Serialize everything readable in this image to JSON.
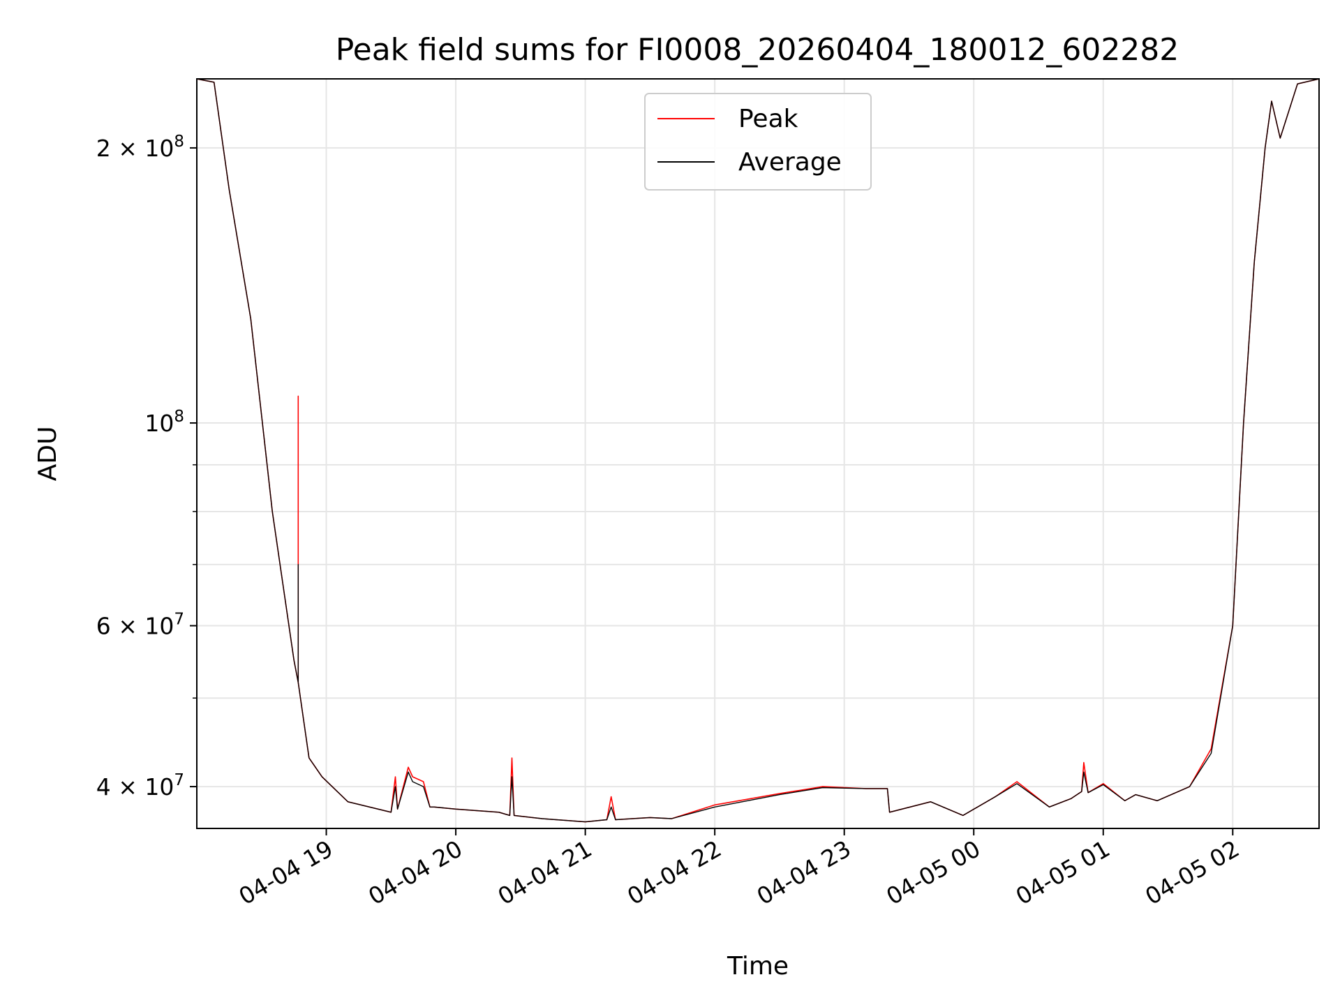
{
  "chart_data": {
    "type": "line",
    "title": "Peak field sums for FI0008_20260404_180012_602282",
    "xlabel": "Time",
    "ylabel": "ADU",
    "yscale": "log",
    "xlim": [
      "2026-04-04 18:00",
      "2026-04-05 02:40"
    ],
    "ylim": [
      36000000.0,
      238000000.0
    ],
    "grid": true,
    "legend": {
      "placement": "top-center"
    },
    "x_ticks": [
      {
        "t": "2026-04-04 19:00",
        "label": "04-04 19"
      },
      {
        "t": "2026-04-04 20:00",
        "label": "04-04 20"
      },
      {
        "t": "2026-04-04 21:00",
        "label": "04-04 21"
      },
      {
        "t": "2026-04-04 22:00",
        "label": "04-04 22"
      },
      {
        "t": "2026-04-04 23:00",
        "label": "04-04 23"
      },
      {
        "t": "2026-04-05 00:00",
        "label": "04-05 00"
      },
      {
        "t": "2026-04-05 01:00",
        "label": "04-05 01"
      },
      {
        "t": "2026-04-05 02:00",
        "label": "04-05 02"
      }
    ],
    "y_ticks": [
      {
        "v": 40000000,
        "label": "4 × 10",
        "exp": "7"
      },
      {
        "v": 60000000,
        "label": "6 × 10",
        "exp": "7"
      },
      {
        "v": 100000000,
        "label": "10",
        "exp": "8"
      },
      {
        "v": 200000000,
        "label": "2 × 10",
        "exp": "8"
      }
    ],
    "y_minor_ticks": [
      50000000,
      70000000,
      80000000,
      90000000
    ],
    "series": [
      {
        "name": "Peak",
        "color": "#ff0000",
        "x": [
          "2026-04-04 18:00",
          "2026-04-04 18:08",
          "2026-04-04 18:15",
          "2026-04-04 18:25",
          "2026-04-04 18:35",
          "2026-04-04 18:45",
          "2026-04-04 18:47",
          "2026-04-04 18:47",
          "2026-04-04 18:47",
          "2026-04-04 18:52",
          "2026-04-04 18:58",
          "2026-04-04 19:10",
          "2026-04-04 19:30",
          "2026-04-04 19:32",
          "2026-04-04 19:33",
          "2026-04-04 19:38",
          "2026-04-04 19:40",
          "2026-04-04 19:45",
          "2026-04-04 19:48",
          "2026-04-04 19:50",
          "2026-04-04 20:00",
          "2026-04-04 20:20",
          "2026-04-04 20:25",
          "2026-04-04 20:26",
          "2026-04-04 20:27",
          "2026-04-04 20:40",
          "2026-04-04 21:00",
          "2026-04-04 21:10",
          "2026-04-04 21:12",
          "2026-04-04 21:14",
          "2026-04-04 21:30",
          "2026-04-04 21:40",
          "2026-04-04 22:00",
          "2026-04-04 22:30",
          "2026-04-04 22:50",
          "2026-04-04 23:10",
          "2026-04-04 23:20",
          "2026-04-04 23:21",
          "2026-04-04 23:40",
          "2026-04-04 23:55",
          "2026-04-05 00:10",
          "2026-04-05 00:20",
          "2026-04-05 00:35",
          "2026-04-05 00:45",
          "2026-04-05 00:50",
          "2026-04-05 00:51",
          "2026-04-05 00:53",
          "2026-04-05 01:00",
          "2026-04-05 01:10",
          "2026-04-05 01:15",
          "2026-04-05 01:25",
          "2026-04-05 01:40",
          "2026-04-05 01:50",
          "2026-04-05 02:00",
          "2026-04-05 02:05",
          "2026-04-05 02:10",
          "2026-04-05 02:15",
          "2026-04-05 02:18",
          "2026-04-05 02:22",
          "2026-04-05 02:30",
          "2026-04-05 02:40"
        ],
        "y": [
          238000000,
          236000000,
          180000000,
          130000000,
          80000000,
          55000000,
          52000000,
          107000000,
          52000000,
          43000000,
          41000000,
          38500000,
          37500000,
          41000000,
          37800000,
          42000000,
          41000000,
          40500000,
          38000000,
          38000000,
          37800000,
          37500000,
          37200000,
          43000000,
          37200000,
          36900000,
          36600000,
          36800000,
          39000000,
          36800000,
          37000000,
          36900000,
          38200000,
          39300000,
          40000000,
          39800000,
          39800000,
          37500000,
          38500000,
          37200000,
          39000000,
          40500000,
          38000000,
          38800000,
          39500000,
          42500000,
          39400000,
          40300000,
          38600000,
          39200000,
          38600000,
          40000000,
          44000000,
          60000000,
          100000000,
          150000000,
          200000000,
          225000000,
          205000000,
          235000000,
          238000000
        ]
      },
      {
        "name": "Average",
        "color": "#000000",
        "x": [
          "2026-04-04 18:00",
          "2026-04-04 18:08",
          "2026-04-04 18:15",
          "2026-04-04 18:25",
          "2026-04-04 18:35",
          "2026-04-04 18:45",
          "2026-04-04 18:47",
          "2026-04-04 18:47",
          "2026-04-04 18:47",
          "2026-04-04 18:52",
          "2026-04-04 18:58",
          "2026-04-04 19:10",
          "2026-04-04 19:30",
          "2026-04-04 19:32",
          "2026-04-04 19:33",
          "2026-04-04 19:38",
          "2026-04-04 19:40",
          "2026-04-04 19:45",
          "2026-04-04 19:48",
          "2026-04-04 19:50",
          "2026-04-04 20:00",
          "2026-04-04 20:20",
          "2026-04-04 20:25",
          "2026-04-04 20:26",
          "2026-04-04 20:27",
          "2026-04-04 20:40",
          "2026-04-04 21:00",
          "2026-04-04 21:10",
          "2026-04-04 21:12",
          "2026-04-04 21:14",
          "2026-04-04 21:30",
          "2026-04-04 21:40",
          "2026-04-04 22:00",
          "2026-04-04 22:30",
          "2026-04-04 22:50",
          "2026-04-04 23:10",
          "2026-04-04 23:20",
          "2026-04-04 23:21",
          "2026-04-04 23:40",
          "2026-04-04 23:55",
          "2026-04-05 00:10",
          "2026-04-05 00:20",
          "2026-04-05 00:35",
          "2026-04-05 00:45",
          "2026-04-05 00:50",
          "2026-04-05 00:51",
          "2026-04-05 00:53",
          "2026-04-05 01:00",
          "2026-04-05 01:10",
          "2026-04-05 01:15",
          "2026-04-05 01:25",
          "2026-04-05 01:40",
          "2026-04-05 01:50",
          "2026-04-05 02:00",
          "2026-04-05 02:05",
          "2026-04-05 02:10",
          "2026-04-05 02:15",
          "2026-04-05 02:18",
          "2026-04-05 02:22",
          "2026-04-05 02:30",
          "2026-04-05 02:40"
        ],
        "y": [
          238000000,
          236000000,
          180000000,
          130000000,
          80000000,
          55000000,
          52000000,
          70000000,
          52000000,
          43000000,
          41000000,
          38500000,
          37500000,
          40000000,
          37800000,
          41500000,
          40500000,
          40000000,
          38000000,
          38000000,
          37800000,
          37500000,
          37200000,
          41000000,
          37200000,
          36900000,
          36600000,
          36800000,
          38000000,
          36800000,
          37000000,
          36900000,
          38000000,
          39200000,
          39900000,
          39800000,
          39800000,
          37500000,
          38500000,
          37200000,
          39000000,
          40300000,
          38000000,
          38800000,
          39500000,
          41500000,
          39400000,
          40200000,
          38600000,
          39200000,
          38600000,
          40000000,
          43500000,
          60000000,
          100000000,
          150000000,
          200000000,
          225000000,
          205000000,
          235000000,
          238000000
        ]
      }
    ]
  }
}
